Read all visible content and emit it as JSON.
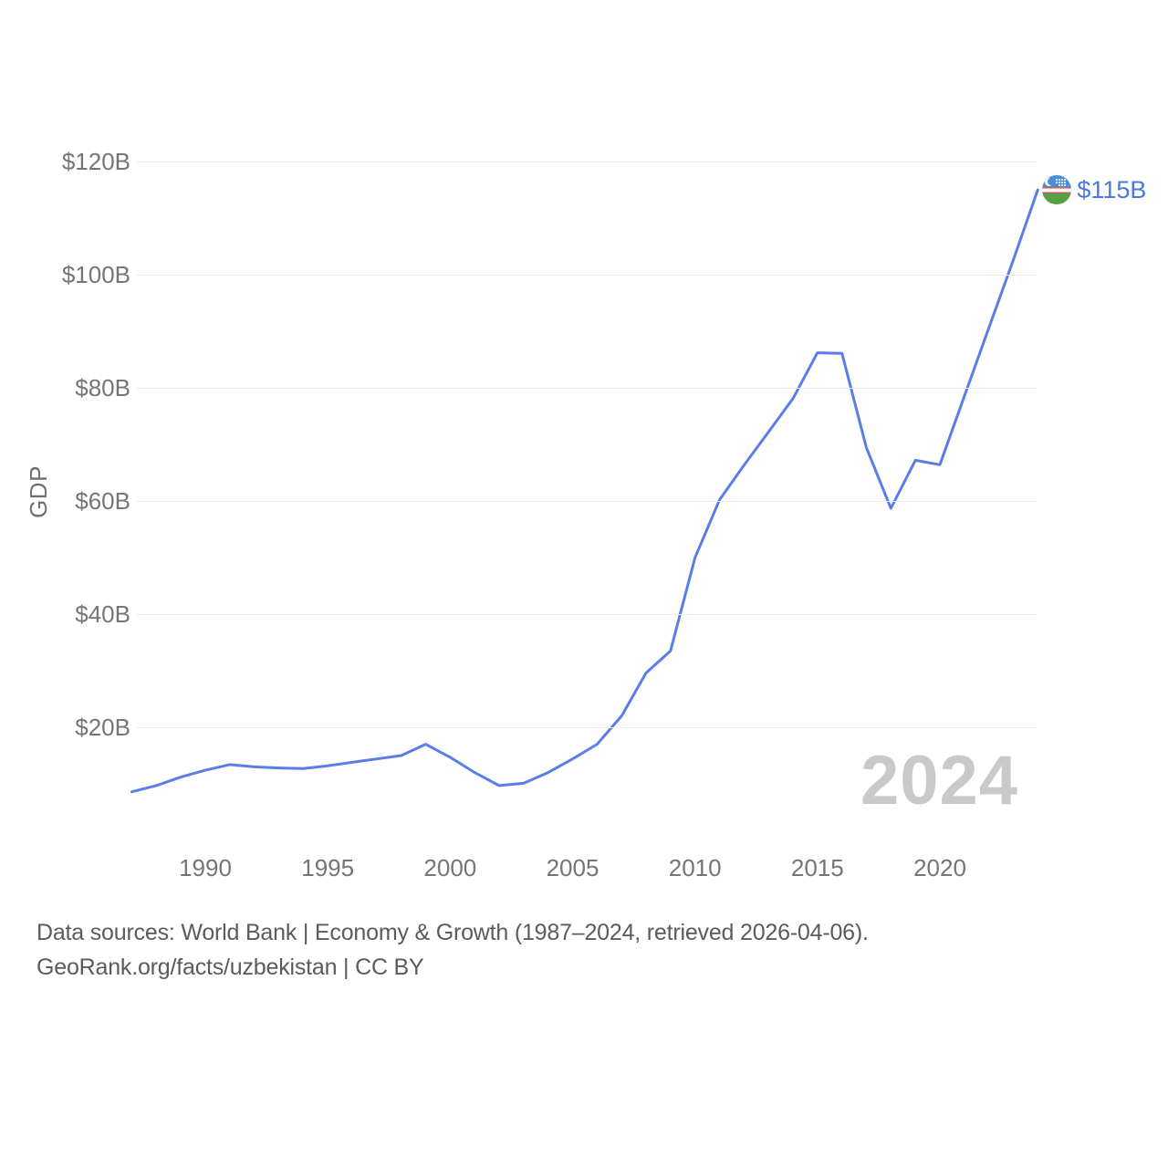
{
  "chart_data": {
    "type": "line",
    "title": "",
    "ylabel": "GDP",
    "xlabel": "",
    "series_name": "GDP",
    "x": [
      1987,
      1988,
      1989,
      1990,
      1991,
      1992,
      1993,
      1994,
      1995,
      1996,
      1997,
      1998,
      1999,
      2000,
      2001,
      2002,
      2003,
      2004,
      2005,
      2006,
      2007,
      2008,
      2009,
      2010,
      2011,
      2012,
      2013,
      2014,
      2015,
      2016,
      2017,
      2018,
      2019,
      2020,
      2021,
      2022,
      2023,
      2024
    ],
    "values": [
      8.6,
      9.7,
      11.2,
      12.4,
      13.4,
      13.0,
      12.8,
      12.7,
      13.2,
      13.8,
      14.4,
      15.0,
      17.0,
      14.7,
      12.0,
      9.7,
      10.1,
      12.0,
      14.4,
      17.0,
      22.0,
      29.6,
      33.5,
      50.0,
      60.2,
      66.3,
      72.2,
      78.1,
      86.2,
      86.1,
      69.4,
      58.7,
      67.2,
      66.4,
      78.5,
      90.6,
      102.6,
      115.0
    ],
    "x_ticks": [
      1990,
      1995,
      2000,
      2005,
      2010,
      2015,
      2020
    ],
    "y_ticks": [
      {
        "label": "$120B",
        "value": 120
      },
      {
        "label": "$100B",
        "value": 100
      },
      {
        "label": "$80B",
        "value": 80
      },
      {
        "label": "$60B",
        "value": 60
      },
      {
        "label": "$40B",
        "value": 40
      },
      {
        "label": "$20B",
        "value": 20
      }
    ],
    "ylim": [
      0,
      125
    ],
    "xlim": [
      1987,
      2024.6
    ],
    "grid": "horizontal",
    "legend_position": "none",
    "end_label": "$115B",
    "line_color": "#5b7de8",
    "end_label_color": "#4d77e0",
    "grid_color": "#ebebeb",
    "tick_color": "#757575"
  },
  "watermark": "2024",
  "end_marker_icon": "uzbekistan-flag",
  "flag_colors": {
    "blue": "#4a8fd5",
    "white": "#f7f7f9",
    "green": "#56a043",
    "red": "#c95f5f"
  },
  "footer": {
    "line1": "Data sources: World Bank | Economy & Growth (1987–2024, retrieved 2026-04-06).",
    "line2": "GeoRank.org/facts/uzbekistan | CC BY"
  }
}
